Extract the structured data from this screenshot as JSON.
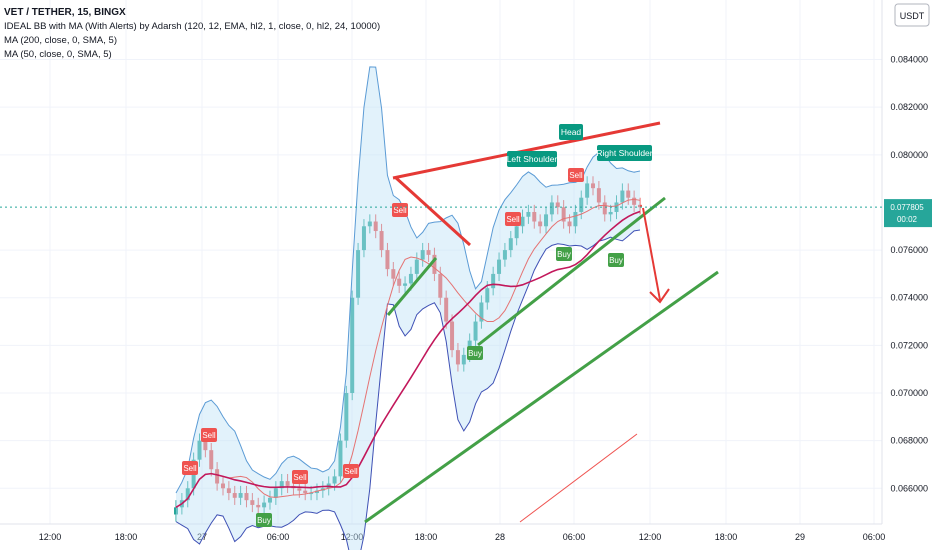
{
  "legend": {
    "title": "VET / TETHER, 15, BINGX",
    "lines": [
      "IDEAL BB with MA (With Alerts) by Adarsh (120, 12, EMA, hl2, 1, close, 0, hl2, 24, 10000)",
      "MA (200, close, 0, SMA, 5)",
      "MA (50, close, 0, SMA, 5)"
    ]
  },
  "price_axis": {
    "unit": "USDT",
    "ticks": [
      "0.084000",
      "0.082000",
      "0.080000",
      "0.076000",
      "0.074000",
      "0.072000",
      "0.070000",
      "0.068000",
      "0.066000"
    ],
    "current_price": "0.077805",
    "countdown": "00:02"
  },
  "time_axis": {
    "ticks": [
      "12:00",
      "18:00",
      "27",
      "06:00",
      "12:00",
      "18:00",
      "28",
      "06:00",
      "12:00",
      "18:00",
      "29",
      "06:00"
    ]
  },
  "annotations": {
    "head": "Head",
    "left_shoulder": "Left Shoulder",
    "right_shoulder": "Right Shoulder"
  },
  "signals": {
    "sell": "Sell",
    "buy": "Buy"
  },
  "colors": {
    "up": "#26a69a",
    "down": "#ef5350",
    "band_fill": "#bfe3f7",
    "band_line": "#5b9bd5",
    "ma200": "#c2185b",
    "ma50": "#e57373",
    "trend_green": "#43a047",
    "trend_red": "#e53935",
    "price_tag": "#26a69a",
    "tag_green": "#089981"
  },
  "chart_data": {
    "type": "candlestick",
    "symbol": "VET / TETHER",
    "interval": "15",
    "exchange": "BINGX",
    "price_range": [
      0.0645,
      0.0865
    ],
    "last_price": 0.077805,
    "series_close": [
      0.0652,
      0.0655,
      0.066,
      0.0672,
      0.068,
      0.0676,
      0.0668,
      0.0662,
      0.066,
      0.0658,
      0.0656,
      0.0658,
      0.0655,
      0.0653,
      0.0652,
      0.0654,
      0.0656,
      0.066,
      0.0663,
      0.0661,
      0.066,
      0.0659,
      0.0658,
      0.0658,
      0.0659,
      0.066,
      0.0662,
      0.0665,
      0.068,
      0.07,
      0.074,
      0.076,
      0.077,
      0.0772,
      0.0768,
      0.076,
      0.0752,
      0.0748,
      0.0745,
      0.0746,
      0.075,
      0.0756,
      0.076,
      0.0758,
      0.075,
      0.074,
      0.073,
      0.0718,
      0.0712,
      0.0716,
      0.0722,
      0.073,
      0.0738,
      0.0744,
      0.075,
      0.0756,
      0.076,
      0.0765,
      0.077,
      0.0774,
      0.0776,
      0.0772,
      0.077,
      0.0775,
      0.078,
      0.0778,
      0.0772,
      0.077,
      0.0776,
      0.0782,
      0.0788,
      0.0786,
      0.078,
      0.0775,
      0.0776,
      0.078,
      0.0785,
      0.0782,
      0.0779,
      0.0778
    ]
  }
}
